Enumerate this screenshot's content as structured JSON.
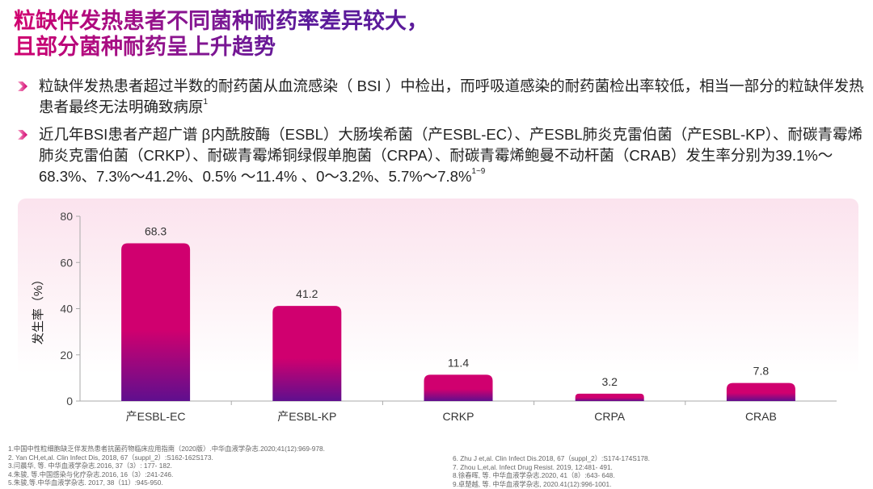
{
  "title": {
    "line1": "粒缺伴发热患者不同菌种耐药率差异较大，",
    "line2": "且部分菌种耐药呈上升趋势"
  },
  "colors": {
    "accent": "#d1006f",
    "purple": "#5b1a9a",
    "bar_top": "#d0006f",
    "bar_bottom": "#5f0f8e"
  },
  "bullets": [
    {
      "icon": "chevron-right-icon",
      "text": "粒缺伴发热患者超过半数的耐药菌从血流感染（ BSI ）中检出，而呼吸道感染的耐药菌检出率较低，相当一部分的粒缺伴发热患者最终无法明确致病原",
      "sup": "1"
    },
    {
      "icon": "chevron-right-icon",
      "text": "近几年BSI患者产超广谱 β内酰胺酶（ESBL）大肠埃希菌（产ESBL-EC）、产ESBL肺炎克雷伯菌（产ESBL-KP）、耐碳青霉烯肺炎克雷伯菌（CRKP）、耐碳青霉烯铜绿假单胞菌（CRPA）、耐碳青霉烯鲍曼不动杆菌（CRAB）发生率分别为39.1%～68.3%、7.3%～41.2%、0.5% ～11.4% 、0～3.2%、5.7%～7.8%",
      "sup": "1~9"
    }
  ],
  "chart_data": {
    "type": "bar",
    "categories": [
      "产ESBL-EC",
      "产ESBL-KP",
      "CRKP",
      "CRPA",
      "CRAB"
    ],
    "values": [
      68.3,
      41.2,
      11.4,
      3.2,
      7.8
    ],
    "data_labels": [
      "68.3",
      "41.2",
      "11.4",
      "3.2",
      "7.8"
    ],
    "ylabel": "发生率（%）",
    "xlabel": "",
    "ylim": [
      0,
      80
    ],
    "yticks": [
      0,
      20,
      40,
      60,
      80
    ],
    "grid": false
  },
  "references_left": [
    "1.中国中性粒细胞缺乏伴发热患者抗菌药物临床应用指南（2020版）.中华血液学杂志.2020;41(12):969-978.",
    "2. Yan CH,et,al. Clin Infect Dis, 2018, 67（suppl_2）:S162-162S173.",
    "3.闫晨华, 等. 中华血液学杂志.2016, 37（3）: 177- 182.",
    "4.朱骏, 等.中国感染与化疗杂志.2016, 16（3）:241-246.",
    "5.朱骏,等.中华血液学杂志. 2017, 38（11）:945-950."
  ],
  "references_right": [
    "6. Zhu J et,al. Clin Infect Dis.2018, 67（suppl_2）:S174-174S178.",
    "7. Zhou L,et,al. Infect Drug Resist. 2019, 12:481- 491.",
    "8.徐春晖, 等. 中华血液学杂志.2020, 41（8）:643- 648.",
    "9.卓楚越, 等. 中华血液学杂志, 2020.41(12):996-1001."
  ]
}
